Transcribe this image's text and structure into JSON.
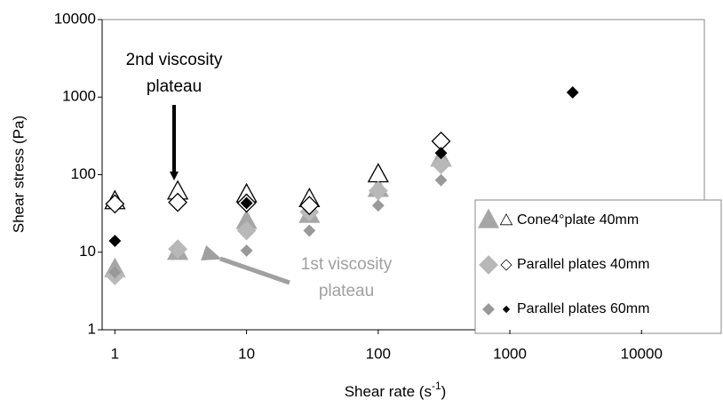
{
  "chart_data": {
    "type": "scatter",
    "xlabel": {
      "text": "Shear rate (s",
      "sup": "-1",
      "end": ")"
    },
    "ylabel": "Shear stress (Pa)",
    "x": [
      1,
      3,
      10,
      30,
      100,
      300,
      3000
    ],
    "xscale": "log",
    "yscale": "log",
    "xlim": [
      0.8,
      30000
    ],
    "ylim": [
      1,
      10000
    ],
    "xticks": [
      1,
      10,
      100,
      1000,
      10000
    ],
    "yticks": [
      1,
      10,
      100,
      1000,
      10000
    ],
    "legend": "lower right",
    "series": [
      {
        "name": "Cone4°plate 40mm",
        "marker": "triangle",
        "color": "#a6a6a6",
        "color2": "#ffffff",
        "values": [
          6,
          10,
          25,
          30,
          65,
          160,
          null
        ],
        "values2": [
          45,
          60,
          55,
          48,
          100,
          null,
          null
        ]
      },
      {
        "name": "Parallel plates 40mm",
        "marker": "diamond",
        "color": "#b8b8b8",
        "color2": "#ffffff",
        "values": [
          5,
          11,
          19,
          33,
          62,
          135,
          null
        ],
        "values2": [
          42,
          44,
          43,
          40,
          null,
          270,
          null
        ]
      },
      {
        "name": "Parallel plates 60mm",
        "marker": "small-diamond",
        "color": "#999999",
        "color2": "#000000",
        "values": [
          5.5,
          null,
          10.5,
          19,
          40,
          85,
          null
        ],
        "values2": [
          14,
          null,
          43,
          null,
          null,
          190,
          1150
        ]
      }
    ],
    "annotations": [
      {
        "lines": [
          "2nd viscosity",
          "plateau"
        ],
        "color": "#000000"
      },
      {
        "lines": [
          "1st viscosity",
          "plateau"
        ],
        "color": "#a0a0a0"
      }
    ]
  }
}
